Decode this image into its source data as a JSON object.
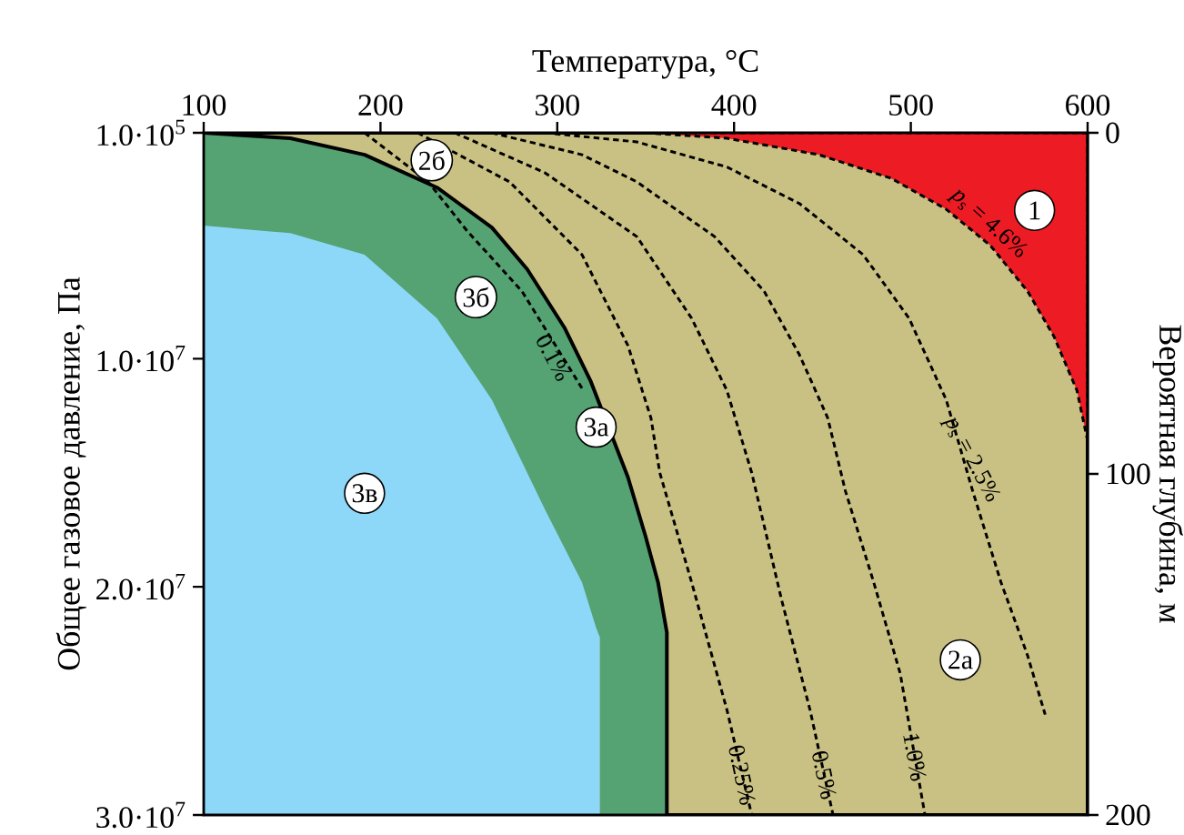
{
  "chart_data": {
    "type": "line",
    "xlabel": "Температура, °C",
    "ylabel": "Общее газовое давление, Па",
    "y2label": "Вероятная глубина, м",
    "xlim": [
      100,
      600
    ],
    "xticks": [
      100,
      200,
      300,
      400,
      500,
      600
    ],
    "ylim": [
      30000000,
      100000
    ],
    "yticks": [
      {
        "value": 100000,
        "label": "1.0·10$^{5}$"
      },
      {
        "value": 10000000,
        "label": "1.0·10$^{7}$"
      },
      {
        "value": 20000000,
        "label": "2.0·10$^{7}$"
      },
      {
        "value": 30000000,
        "label": "3.0·10$^{7}$"
      }
    ],
    "y2lim": [
      200,
      0
    ],
    "y2ticks": [
      0,
      100,
      200
    ],
    "series": [
      {
        "type": "area",
        "color": "#8dd8f8",
        "x": [
          100,
          324
        ],
        "values": [
          30000000,
          30000000
        ]
      },
      {
        "type": "area",
        "color": "#55a273",
        "x": [
          100,
          149,
          191,
          232,
          263,
          293,
          314,
          322,
          324,
          324,
          362
        ],
        "values": [
          4170000,
          4500000,
          5440000,
          8230000,
          11800000,
          16600000,
          19800000,
          21800000,
          22200000,
          30000000,
          30000000
        ]
      },
      {
        "type": "area",
        "line_style": "solid",
        "color": "#c9c183",
        "x": [
          100,
          149,
          191,
          232,
          263,
          283,
          304,
          319,
          340,
          350,
          357,
          362,
          362,
          600
        ],
        "values": [
          100000,
          340000,
          1060000,
          2500000,
          4250000,
          6080000,
          8630000,
          11000000,
          15200000,
          17800000,
          19800000,
          22000000,
          30000000,
          30000000
        ]
      },
      {
        "type": "area",
        "line_style": "dashed",
        "color": "#ed1c24",
        "x": [
          350,
          396,
          448,
          489,
          520,
          545,
          566,
          581,
          594,
          600
        ],
        "values": [
          100000,
          340000,
          1060000,
          2100000,
          3450000,
          5040000,
          7040000,
          9030000,
          11400000,
          13600000
        ]
      },
      {
        "line_style": "dashed",
        "color": "#000000",
        "x": [
          191,
          227,
          249,
          280,
          314
        ],
        "values": [
          100000,
          2250000,
          4400000,
          7040000,
          11300000
        ]
      },
      {
        "line_style": "dashed",
        "color": "#000000",
        "x": [
          221,
          273,
          314,
          340,
          353,
          358,
          376,
          396,
          410
        ],
        "values": [
          100000,
          2250000,
          5440000,
          9430000,
          12600000,
          15000000,
          19800000,
          25400000,
          30000000
        ]
      },
      {
        "line_style": "dashed",
        "color": "#000000",
        "x": [
          242,
          293,
          345,
          376,
          396,
          410,
          427,
          443,
          456
        ],
        "values": [
          100000,
          1850000,
          4650000,
          8230000,
          11400000,
          15000000,
          20600000,
          25400000,
          30000000
        ]
      },
      {
        "line_style": "dashed",
        "color": "#000000",
        "x": [
          263,
          314,
          345,
          389,
          417,
          437,
          453,
          463,
          479,
          494,
          508
        ],
        "values": [
          100000,
          1060000,
          2250000,
          4650000,
          7040000,
          9830000,
          12600000,
          15800000,
          19800000,
          23800000,
          30000000
        ]
      },
      {
        "line_style": "dashed",
        "color": "#000000",
        "x": [
          293,
          345,
          396,
          437,
          473,
          499,
          520,
          535,
          551,
          566,
          576
        ],
        "values": [
          100000,
          500000,
          1600000,
          3200000,
          5440000,
          8230000,
          11800000,
          15800000,
          19800000,
          23000000,
          25600000
        ]
      }
    ],
    "annotations": [
      {
        "text": "1",
        "x": 570,
        "y": 3500000
      },
      {
        "text": "2а",
        "x": 528,
        "y": 23200000
      },
      {
        "text": "2б",
        "x": 229,
        "y": 1300000
      },
      {
        "text": "3а",
        "x": 322,
        "y": 13000000
      },
      {
        "text": "3б",
        "x": 254,
        "y": 7300000
      },
      {
        "text": "3в",
        "x": 191,
        "y": 15900000
      },
      "0.1%",
      "0.25%",
      "0.5%",
      "1.0%",
      "*p*$_{s}$ = 2.5%",
      "*p*$_{s}$ = 4.6%"
    ]
  }
}
